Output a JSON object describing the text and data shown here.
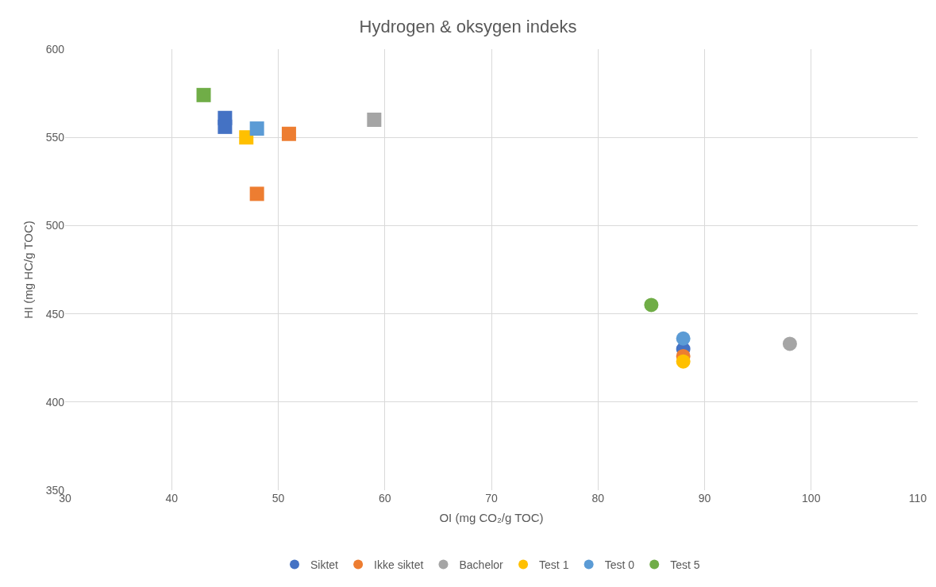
{
  "chart_data": {
    "type": "scatter",
    "title": "Hydrogen & oksygen indeks",
    "xlabel": "OI (mg CO₂/g TOC)",
    "ylabel": "HI (mg HC/g TOC)",
    "xlim": [
      30,
      110
    ],
    "xticks": [
      30,
      40,
      50,
      60,
      70,
      80,
      90,
      100,
      110
    ],
    "ylim": [
      350,
      600
    ],
    "yticks": [
      350,
      400,
      450,
      500,
      550,
      600
    ],
    "grid": true,
    "legend": "bottom",
    "marker": "circle",
    "series": [
      {
        "name": "Siktet",
        "color": "#4472c4",
        "x": [
          88
        ],
        "values": [
          430
        ]
      },
      {
        "name": "Ikke siktet",
        "color": "#ed7d31",
        "x": [
          88
        ],
        "values": [
          426
        ]
      },
      {
        "name": "Bachelor",
        "color": "#a5a5a5",
        "x": [
          98
        ],
        "values": [
          433
        ]
      },
      {
        "name": "Test 1",
        "color": "#ffc000",
        "x": [
          88
        ],
        "values": [
          423
        ]
      },
      {
        "name": "Test 0",
        "color": "#5b9bd5",
        "x": [
          88
        ],
        "values": [
          436
        ]
      },
      {
        "name": "Test 5",
        "color": "#70ad47",
        "x": [
          85
        ],
        "values": [
          455
        ]
      },
      {
        "color": "#4472c4",
        "marker": "square",
        "x": [
          45,
          45
        ],
        "values": [
          561,
          556
        ]
      },
      {
        "color": "#ed7d31",
        "marker": "square",
        "x": [
          51,
          48
        ],
        "values": [
          552,
          518
        ]
      },
      {
        "color": "#a5a5a5",
        "marker": "square",
        "x": [
          59
        ],
        "values": [
          560
        ]
      },
      {
        "color": "#ffc000",
        "marker": "square",
        "x": [
          47
        ],
        "values": [
          550
        ]
      },
      {
        "color": "#5b9bd5",
        "marker": "square",
        "x": [
          48
        ],
        "values": [
          555
        ]
      },
      {
        "color": "#70ad47",
        "marker": "square",
        "x": [
          43
        ],
        "values": [
          574
        ]
      }
    ]
  }
}
